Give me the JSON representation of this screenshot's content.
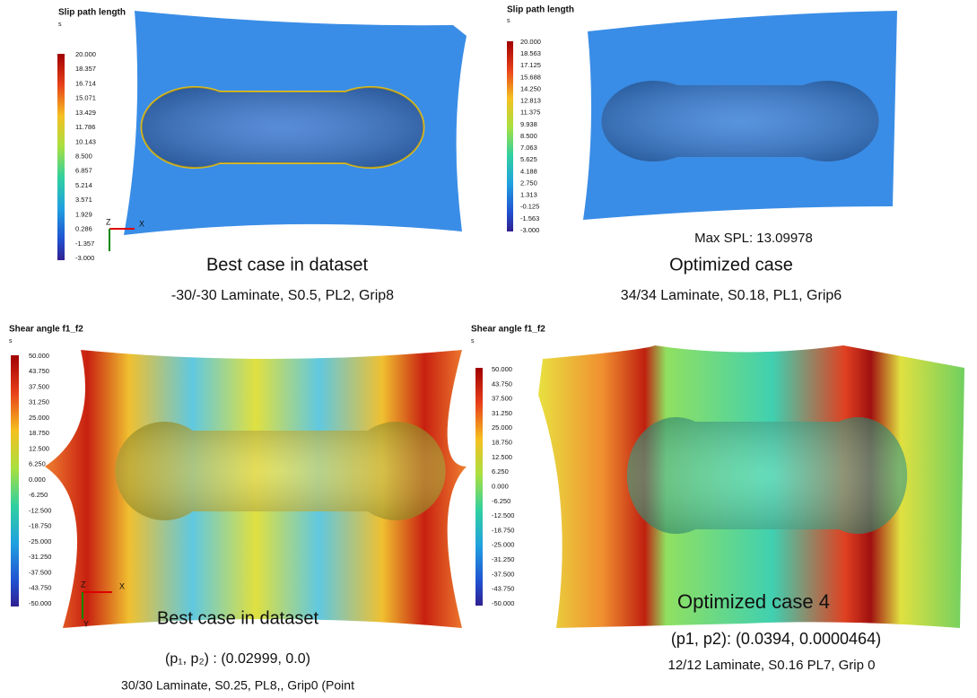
{
  "panels": [
    {
      "title": "Slip path length",
      "unit": "s",
      "colorbar": [
        "20.000",
        "18.357",
        "16.714",
        "15.071",
        "13.429",
        "11.786",
        "10.143",
        "8.500",
        "6.857",
        "5.214",
        "3.571",
        "1.929",
        "0.286",
        "-1.357",
        "-3.000"
      ],
      "axes": [
        "Z",
        "X"
      ],
      "captions": [
        "Best case in dataset",
        "-30/-30 Laminate, S0.5, PL2, Grip8"
      ]
    },
    {
      "title": "Slip path length",
      "unit": "s",
      "colorbar": [
        "20.000",
        "18.563",
        "17.125",
        "15.688",
        "14.250",
        "12.813",
        "11.375",
        "9.938",
        "8.500",
        "7.063",
        "5.625",
        "4.188",
        "2.750",
        "1.313",
        "-0.125",
        "-1.563",
        "-3.000"
      ],
      "axes": [],
      "captions": [
        "Max SPL: 13.09978",
        "Optimized case",
        "34/34 Laminate, S0.18, PL1, Grip6"
      ]
    },
    {
      "title": "Shear angle f1_f2",
      "unit": "s",
      "colorbar": [
        "50.000",
        "43.750",
        "37.500",
        "31.250",
        "25.000",
        "18.750",
        "12.500",
        "6.250",
        "0.000",
        "-6.250",
        "-12.500",
        "-18.750",
        "-25.000",
        "-31.250",
        "-37.500",
        "-43.750",
        "-50.000"
      ],
      "axes": [
        "Z",
        "X",
        "Y"
      ],
      "captions": [
        "Best case in dataset",
        "(p₁, p₂) : (0.02999, 0.0)",
        "30/30 Laminate, S0.25, PL8,, Grip0 (Point"
      ]
    },
    {
      "title": "Shear angle f1_f2",
      "unit": "s",
      "colorbar": [
        "50.000",
        "43.750",
        "37.500",
        "31.250",
        "25.000",
        "18.750",
        "12.500",
        "6.250",
        "0.000",
        "-6.250",
        "-12.500",
        "-18.750",
        "-25.000",
        "-31.250",
        "-37.500",
        "-43.750",
        "-50.000"
      ],
      "axes": [],
      "captions": [
        "Optimized case 4",
        "(p1, p2): (0.0394, 0.0000464)",
        "12/12 Laminate, S0.16 PL7, Grip 0"
      ]
    }
  ]
}
